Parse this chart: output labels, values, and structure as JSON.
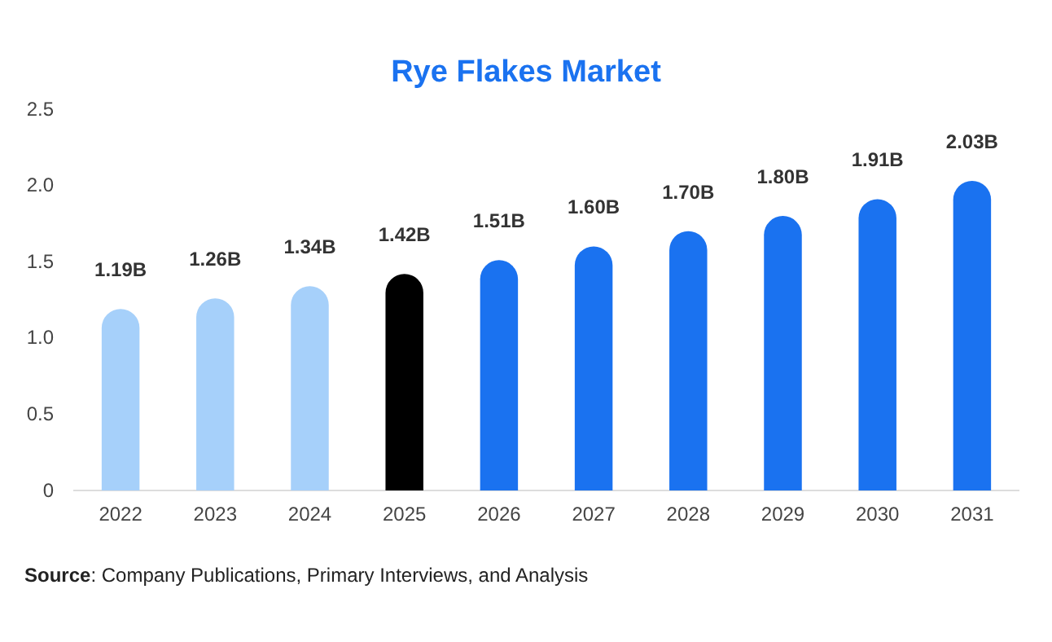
{
  "chart_data": {
    "type": "bar",
    "title": "Rye Flakes Market",
    "categories": [
      "2022",
      "2023",
      "2024",
      "2025",
      "2026",
      "2027",
      "2028",
      "2029",
      "2030",
      "2031"
    ],
    "values": [
      1.19,
      1.26,
      1.34,
      1.42,
      1.51,
      1.6,
      1.7,
      1.8,
      1.91,
      2.03
    ],
    "colors": [
      "#a6d0fa",
      "#a6d0fa",
      "#a6d0fa",
      "#000000",
      "#1a72f0",
      "#1a72f0",
      "#1a72f0",
      "#1a72f0",
      "#1a72f0",
      "#1a72f0"
    ],
    "value_labels": [
      "1.19B",
      "1.26B",
      "1.34B",
      "1.42B",
      "1.51B",
      "1.60B",
      "1.70B",
      "1.80B",
      "1.91B",
      "2.03B"
    ],
    "ylim": [
      0,
      2.5
    ],
    "yticks": [
      0,
      {
        "value": 0.5,
        "label": "0.5"
      },
      {
        "value": 1,
        "label": "1.0"
      },
      {
        "value": 1.5,
        "label": "1.5"
      },
      {
        "value": 2,
        "label": "2.0"
      },
      {
        "value": 2.5,
        "label": "2.5"
      }
    ],
    "grid": false,
    "annotations": [
      "Source: Company Publications, Primary Interviews, and Analysis"
    ]
  }
}
